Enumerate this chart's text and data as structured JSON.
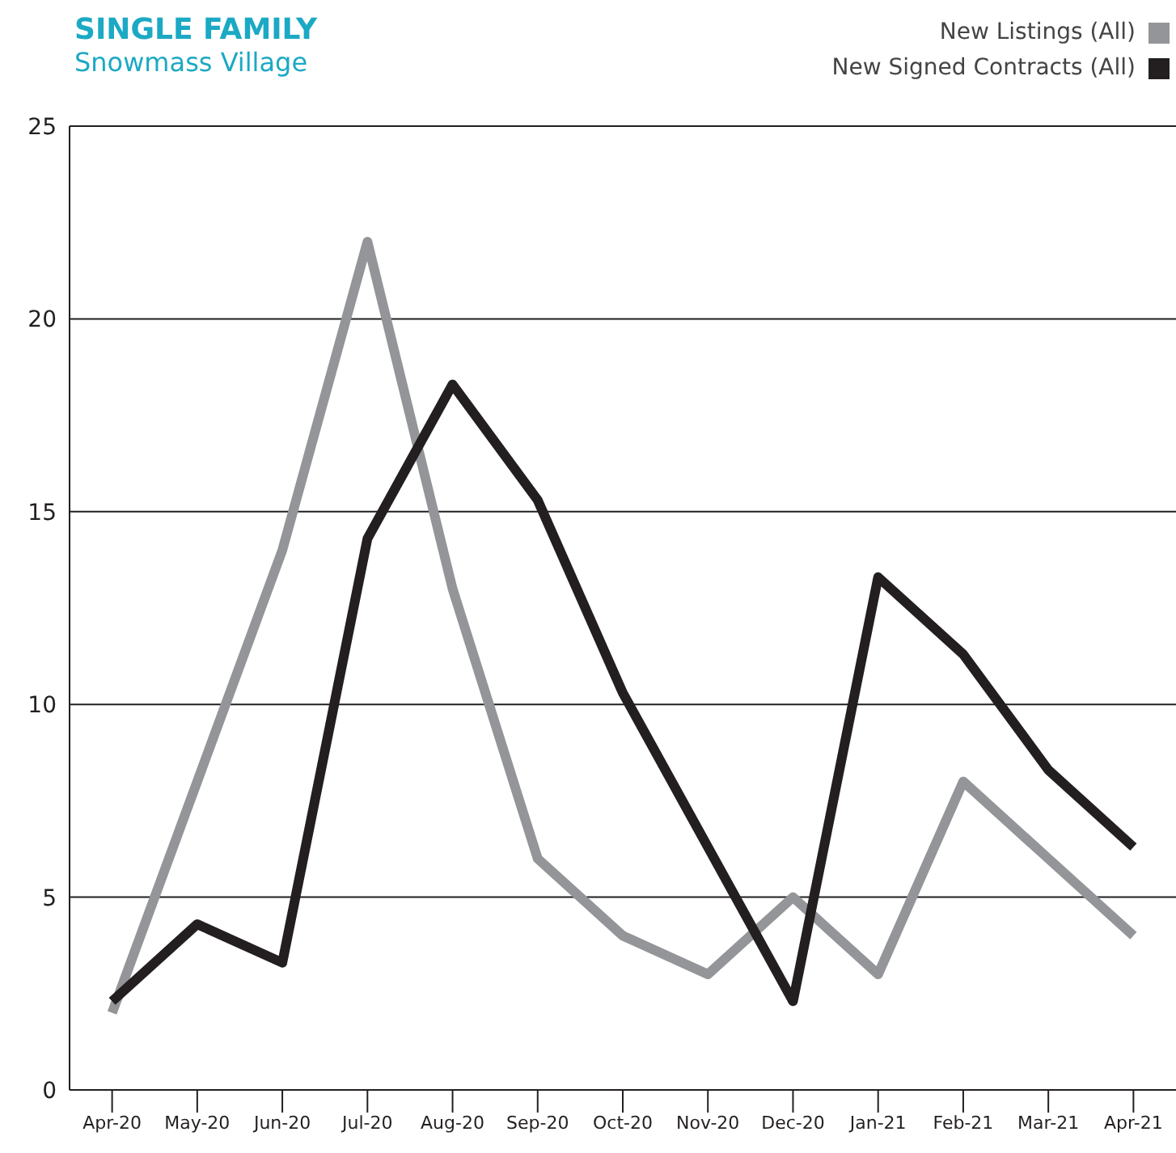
{
  "chart_data": {
    "type": "line",
    "title": "SINGLE FAMILY",
    "subtitle": "Snowmass Village",
    "categories": [
      "Apr-20",
      "May-20",
      "Jun-20",
      "Jul-20",
      "Aug-20",
      "Sep-20",
      "Oct-20",
      "Nov-20",
      "Dec-20",
      "Jan-21",
      "Feb-21",
      "Mar-21",
      "Apr-21"
    ],
    "series": [
      {
        "name": "New Listings (All)",
        "color": "#939598",
        "values": [
          2,
          8,
          14,
          22,
          13,
          6,
          4,
          3,
          5,
          3,
          8,
          6,
          4
        ]
      },
      {
        "name": "New Signed Contracts (All)",
        "color": "#231f20",
        "values": [
          2.3,
          4.3,
          3.3,
          14.3,
          18.3,
          15.3,
          10.3,
          6.3,
          2.3,
          13.3,
          11.3,
          8.3,
          6.3
        ]
      }
    ],
    "ylim": [
      0,
      25
    ],
    "yticks": [
      0,
      5,
      10,
      15,
      20,
      25
    ],
    "grid": "y",
    "legend": "top right",
    "marker": "none",
    "line_style": "solid"
  }
}
